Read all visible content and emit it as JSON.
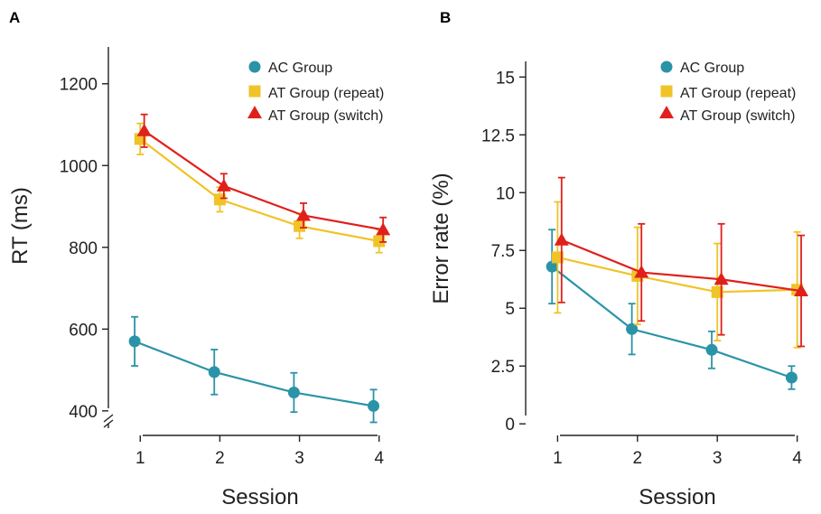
{
  "colors": {
    "ac": "#2a93a8",
    "at_repeat": "#f0c328",
    "at_switch": "#e0201b"
  },
  "chart_data": [
    {
      "panel": "A",
      "type": "line",
      "xlabel": "Session",
      "ylabel": "RT (ms)",
      "x": [
        1,
        2,
        3,
        4
      ],
      "xlim": [
        0.6,
        4.4
      ],
      "ylim": [
        340,
        1290
      ],
      "yticks": [
        400,
        600,
        800,
        1000,
        1200
      ],
      "y_axis_break": true,
      "legend_position": "top-right",
      "series": [
        {
          "name": "AC Group",
          "marker": "circle",
          "color_key": "ac",
          "values": [
            570,
            495,
            445,
            412
          ],
          "error": [
            60,
            55,
            48,
            40
          ]
        },
        {
          "name": "AT Group (repeat)",
          "marker": "square",
          "color_key": "at_repeat",
          "values": [
            1065,
            917,
            852,
            815
          ],
          "error": [
            38,
            30,
            30,
            28
          ]
        },
        {
          "name": "AT Group (switch)",
          "marker": "triangle",
          "color_key": "at_switch",
          "values": [
            1085,
            950,
            878,
            843
          ],
          "error": [
            40,
            30,
            30,
            30
          ]
        }
      ]
    },
    {
      "panel": "B",
      "type": "line",
      "xlabel": "Session",
      "ylabel": "Error rate (%)",
      "x": [
        1,
        2,
        3,
        4
      ],
      "xlim": [
        0.6,
        4.4
      ],
      "ylim": [
        -0.5,
        16.3
      ],
      "yticks": [
        0,
        2.5,
        5,
        7.5,
        10,
        12.5,
        15
      ],
      "ytick_labels": [
        "0",
        "2.5",
        "5",
        "7.5",
        "10",
        "12.5",
        "15"
      ],
      "legend_position": "top-right",
      "series": [
        {
          "name": "AC Group",
          "marker": "circle",
          "color_key": "ac",
          "values": [
            6.8,
            4.1,
            3.2,
            2.0
          ],
          "error": [
            1.6,
            1.1,
            0.8,
            0.5
          ]
        },
        {
          "name": "AT Group (repeat)",
          "marker": "square",
          "color_key": "at_repeat",
          "values": [
            7.2,
            6.4,
            5.7,
            5.8
          ],
          "error": [
            2.4,
            2.1,
            2.1,
            2.5
          ]
        },
        {
          "name": "AT Group (switch)",
          "marker": "triangle",
          "color_key": "at_switch",
          "values": [
            7.95,
            6.55,
            6.25,
            5.75
          ],
          "error": [
            2.7,
            2.1,
            2.4,
            2.4
          ]
        }
      ]
    }
  ]
}
